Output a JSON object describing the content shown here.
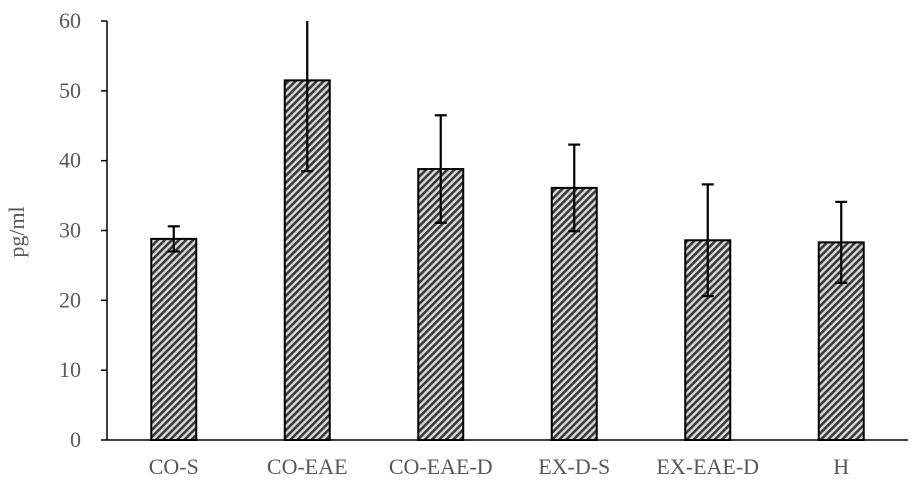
{
  "chart_data": {
    "type": "bar",
    "title": "",
    "xlabel": "",
    "ylabel": "pg/ml",
    "ylim": [
      0,
      60
    ],
    "yticks": [
      0,
      10,
      20,
      30,
      40,
      50,
      60
    ],
    "grid": false,
    "legend": "none",
    "categories": [
      "CO-S",
      "CO-EAE",
      "CO-EAE-D",
      "EX-D-S",
      "EX-EAE-D",
      "H"
    ],
    "series": [
      {
        "values": [
          28.8,
          51.5,
          38.8,
          36.1,
          28.6,
          28.3
        ],
        "error": [
          1.8,
          13.0,
          7.7,
          6.2,
          8.0,
          5.8
        ]
      }
    ]
  },
  "colors": {
    "bar_pattern_dark": "#3a3a3a",
    "bar_pattern_light": "#d9d9d9",
    "bar_border": "#000000",
    "axis": "#000000",
    "text": "#595959"
  }
}
